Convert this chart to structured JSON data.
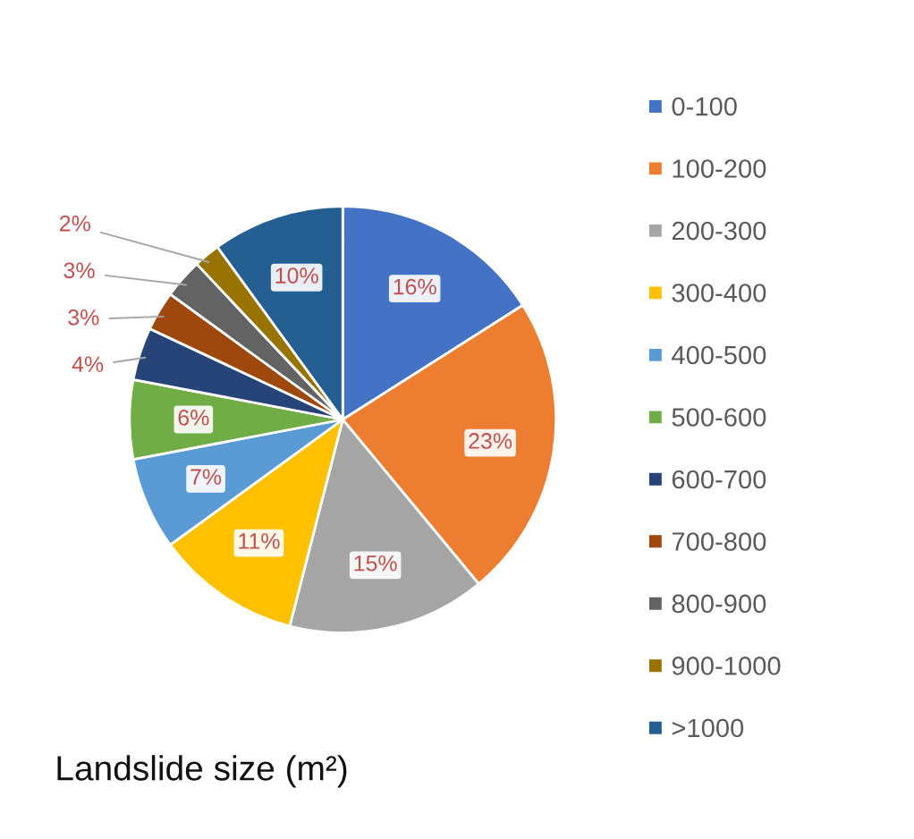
{
  "chart_data": {
    "type": "pie",
    "title": "Landslide size (m²)",
    "categories": [
      "0-100",
      "100-200",
      "200-300",
      "300-400",
      "400-500",
      "500-600",
      "600-700",
      "700-800",
      "800-900",
      "900-1000",
      ">1000"
    ],
    "values": [
      16,
      23,
      15,
      11,
      7,
      6,
      4,
      3,
      3,
      2,
      10
    ],
    "colors": [
      "#4472c4",
      "#ed7d31",
      "#a5a5a5",
      "#ffc000",
      "#5b9bd5",
      "#70ad47",
      "#264478",
      "#9e480e",
      "#636363",
      "#997300",
      "#255e91"
    ],
    "value_labels": [
      "16%",
      "23%",
      "15%",
      "11%",
      "7%",
      "6%",
      "4%",
      "3%",
      "3%",
      "2%",
      "10%"
    ],
    "legend": "right"
  }
}
